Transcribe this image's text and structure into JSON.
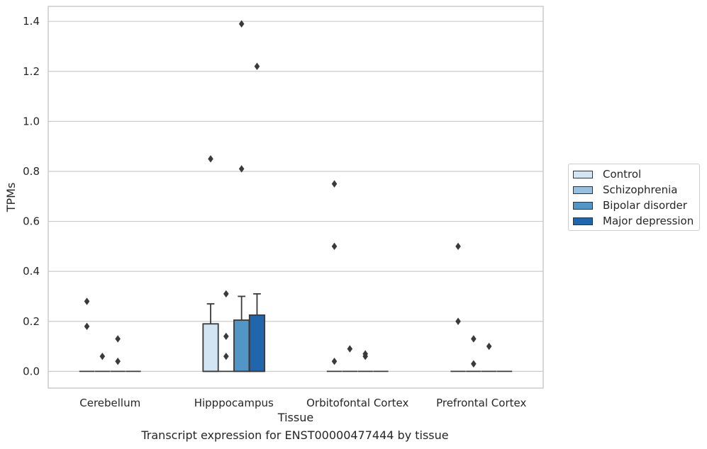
{
  "chart_data": {
    "type": "box",
    "xlabel": "Tissue",
    "ylabel": "TPMs",
    "caption": "Transcript expression for ENST00000477444 by tissue",
    "categories": [
      "Cerebellum",
      "Hipppocampus",
      "Orbitofontal Cortex",
      "Prefrontal Cortex"
    ],
    "ylim": [
      -0.067,
      1.46
    ],
    "yticks": [
      0.0,
      0.2,
      0.4,
      0.6,
      0.8,
      1.0,
      1.2,
      1.4
    ],
    "ytick_labels": [
      "0.0",
      "0.2",
      "0.4",
      "0.6",
      "0.8",
      "1.0",
      "1.2",
      "1.4"
    ],
    "grid": "horizontal",
    "legend_position": "right-outside",
    "series": [
      {
        "name": "Control",
        "color": "#d3e4f3",
        "boxes": [
          {
            "q1": 0,
            "median": 0,
            "q3": 0,
            "whisker_low": 0,
            "whisker_high": 0,
            "outliers": [
              0.28,
              0.18
            ]
          },
          {
            "q1": 0,
            "median": 0,
            "q3": 0.19,
            "whisker_low": 0,
            "whisker_high": 0.27,
            "outliers": [
              0.85
            ]
          },
          {
            "q1": 0,
            "median": 0,
            "q3": 0,
            "whisker_low": 0,
            "whisker_high": 0,
            "outliers": [
              0.75,
              0.5,
              0.04
            ]
          },
          {
            "q1": 0,
            "median": 0,
            "q3": 0,
            "whisker_low": 0,
            "whisker_high": 0,
            "outliers": [
              0.5,
              0.2
            ]
          }
        ]
      },
      {
        "name": "Schizophrenia",
        "color": "#98c0de",
        "boxes": [
          {
            "q1": 0,
            "median": 0,
            "q3": 0,
            "whisker_low": 0,
            "whisker_high": 0,
            "outliers": [
              0.06
            ]
          },
          {
            "q1": 0,
            "median": 0,
            "q3": 0,
            "whisker_low": 0,
            "whisker_high": 0,
            "outliers": [
              0.31,
              0.14,
              0.06
            ]
          },
          {
            "q1": 0,
            "median": 0,
            "q3": 0,
            "whisker_low": 0,
            "whisker_high": 0,
            "outliers": [
              0.09
            ]
          },
          {
            "q1": 0,
            "median": 0,
            "q3": 0,
            "whisker_low": 0,
            "whisker_high": 0,
            "outliers": [
              0.13,
              0.03
            ]
          }
        ]
      },
      {
        "name": "Bipolar disorder",
        "color": "#5196c7",
        "boxes": [
          {
            "q1": 0,
            "median": 0,
            "q3": 0,
            "whisker_low": 0,
            "whisker_high": 0,
            "outliers": [
              0.13,
              0.04
            ]
          },
          {
            "q1": 0,
            "median": 0,
            "q3": 0.205,
            "whisker_low": 0,
            "whisker_high": 0.3,
            "outliers": [
              1.39,
              0.81
            ]
          },
          {
            "q1": 0,
            "median": 0,
            "q3": 0,
            "whisker_low": 0,
            "whisker_high": 0,
            "outliers": [
              0.07,
              0.06
            ]
          },
          {
            "q1": 0,
            "median": 0,
            "q3": 0,
            "whisker_low": 0,
            "whisker_high": 0,
            "outliers": [
              0.1
            ]
          }
        ]
      },
      {
        "name": "Major depression",
        "color": "#2166ac",
        "boxes": [
          {
            "q1": 0,
            "median": 0,
            "q3": 0,
            "whisker_low": 0,
            "whisker_high": 0,
            "outliers": []
          },
          {
            "q1": 0,
            "median": 0,
            "q3": 0.225,
            "whisker_low": 0,
            "whisker_high": 0.31,
            "outliers": [
              1.22
            ]
          },
          {
            "q1": 0,
            "median": 0,
            "q3": 0,
            "whisker_low": 0,
            "whisker_high": 0,
            "outliers": []
          },
          {
            "q1": 0,
            "median": 0,
            "q3": 0,
            "whisker_low": 0,
            "whisker_high": 0,
            "outliers": []
          }
        ]
      }
    ]
  }
}
